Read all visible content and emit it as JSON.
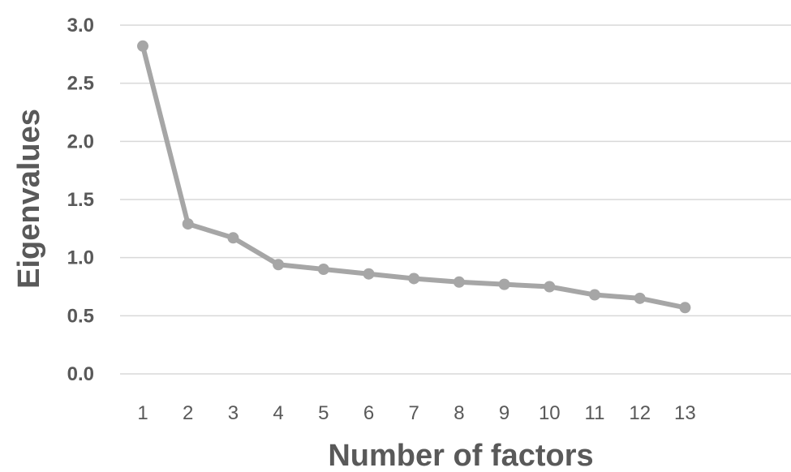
{
  "chart_data": {
    "type": "line",
    "title": "",
    "xlabel": "Number of factors",
    "ylabel": "Eigenvalues",
    "x": [
      1,
      2,
      3,
      4,
      5,
      6,
      7,
      8,
      9,
      10,
      11,
      12,
      13
    ],
    "y_ticks": [
      "0.0",
      "0.5",
      "1.0",
      "1.5",
      "2.0",
      "2.5",
      "3.0"
    ],
    "ylim": [
      0,
      3
    ],
    "grid": true,
    "legend": "none",
    "series": [
      {
        "color": "#a6a6a6",
        "values": [
          2.82,
          1.29,
          1.17,
          0.94,
          0.9,
          0.86,
          0.82,
          0.79,
          0.77,
          0.75,
          0.68,
          0.65,
          0.57
        ]
      }
    ]
  }
}
